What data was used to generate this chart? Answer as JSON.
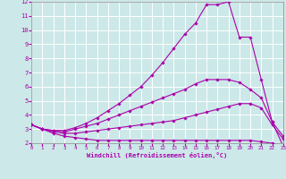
{
  "background_color": "#cce8e8",
  "grid_color": "#ffffff",
  "line_color": "#aa00aa",
  "xlabel": "Windchill (Refroidissement éolien,°C)",
  "xlim": [
    0,
    23
  ],
  "ylim": [
    2,
    12
  ],
  "xticks": [
    0,
    1,
    2,
    3,
    4,
    5,
    6,
    7,
    8,
    9,
    10,
    11,
    12,
    13,
    14,
    15,
    16,
    17,
    18,
    19,
    20,
    21,
    22,
    23
  ],
  "yticks": [
    2,
    3,
    4,
    5,
    6,
    7,
    8,
    9,
    10,
    11,
    12
  ],
  "series": [
    {
      "x": [
        0,
        1,
        2,
        3,
        4,
        5,
        6,
        7,
        8,
        9,
        10,
        11,
        12,
        13,
        14,
        15,
        16,
        17,
        18,
        19,
        20,
        21,
        22,
        23
      ],
      "y": [
        3.3,
        3.0,
        2.7,
        2.5,
        2.4,
        2.3,
        2.2,
        2.2,
        2.2,
        2.2,
        2.2,
        2.2,
        2.2,
        2.2,
        2.2,
        2.2,
        2.2,
        2.2,
        2.2,
        2.2,
        2.2,
        2.1,
        2.0,
        1.8
      ]
    },
    {
      "x": [
        0,
        1,
        2,
        3,
        4,
        5,
        6,
        7,
        8,
        9,
        10,
        11,
        12,
        13,
        14,
        15,
        16,
        17,
        18,
        19,
        20,
        21,
        22,
        23
      ],
      "y": [
        3.3,
        3.0,
        2.8,
        2.7,
        2.7,
        2.8,
        2.9,
        3.0,
        3.1,
        3.2,
        3.3,
        3.4,
        3.5,
        3.6,
        3.8,
        4.0,
        4.2,
        4.4,
        4.6,
        4.8,
        4.8,
        4.5,
        3.3,
        2.3
      ]
    },
    {
      "x": [
        0,
        1,
        2,
        3,
        4,
        5,
        6,
        7,
        8,
        9,
        10,
        11,
        12,
        13,
        14,
        15,
        16,
        17,
        18,
        19,
        20,
        21,
        22,
        23
      ],
      "y": [
        3.3,
        3.0,
        2.9,
        2.8,
        3.0,
        3.2,
        3.4,
        3.7,
        4.0,
        4.3,
        4.6,
        4.9,
        5.2,
        5.5,
        5.8,
        6.2,
        6.5,
        6.5,
        6.5,
        6.3,
        5.8,
        5.2,
        3.5,
        2.5
      ]
    },
    {
      "x": [
        0,
        1,
        2,
        3,
        4,
        5,
        6,
        7,
        8,
        9,
        10,
        11,
        12,
        13,
        14,
        15,
        16,
        17,
        18,
        19,
        20,
        21,
        22,
        23
      ],
      "y": [
        3.3,
        3.0,
        2.9,
        2.9,
        3.1,
        3.4,
        3.8,
        4.3,
        4.8,
        5.4,
        6.0,
        6.8,
        7.7,
        8.7,
        9.7,
        10.5,
        11.8,
        11.8,
        12.0,
        9.5,
        9.5,
        6.5,
        3.5,
        1.8
      ]
    }
  ]
}
